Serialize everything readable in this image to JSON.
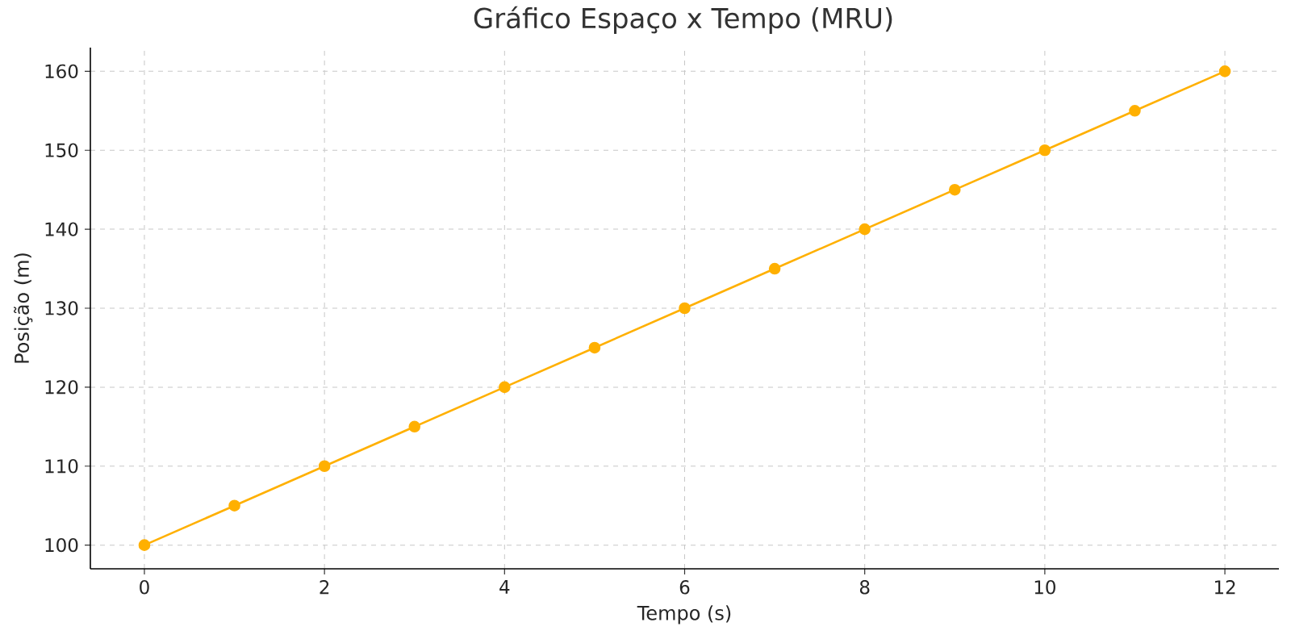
{
  "chart_data": {
    "type": "line",
    "title": "Gráfico Espaço x Tempo (MRU)",
    "xlabel": "Tempo (s)",
    "ylabel": "Posição (m)",
    "x": [
      0,
      1,
      2,
      3,
      4,
      5,
      6,
      7,
      8,
      9,
      10,
      11,
      12
    ],
    "series": [
      {
        "color": "#ffb000",
        "values": [
          100,
          105,
          110,
          115,
          120,
          125,
          130,
          135,
          140,
          145,
          150,
          155,
          160
        ]
      }
    ],
    "xlim": [
      -0.6,
      12.6
    ],
    "ylim": [
      97,
      163
    ],
    "xticks": [
      0,
      2,
      4,
      6,
      8,
      10,
      12
    ],
    "yticks": [
      100,
      110,
      120,
      130,
      140,
      150,
      160
    ],
    "grid": true,
    "marker": "circle",
    "line_style": "solid"
  }
}
